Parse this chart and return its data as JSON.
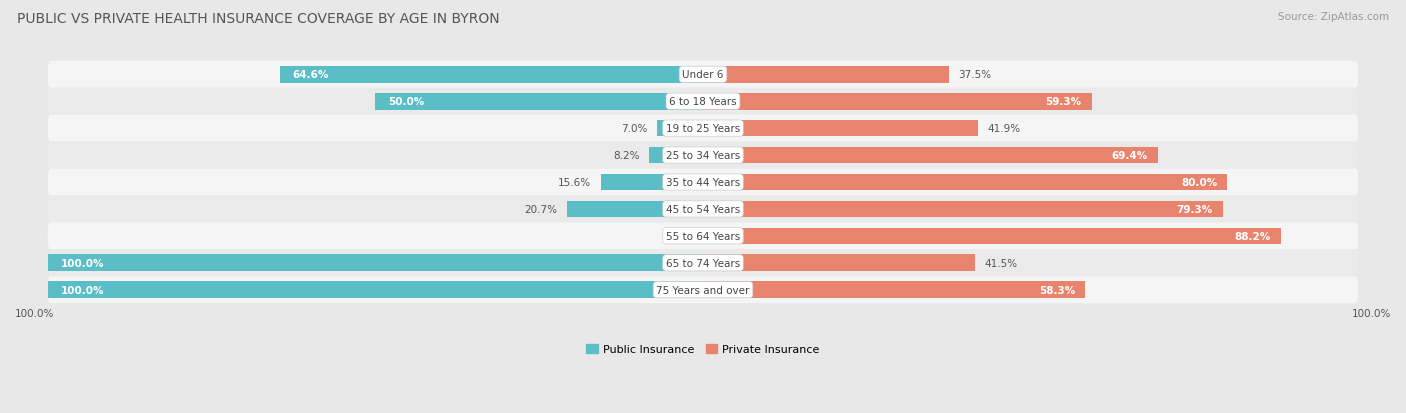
{
  "title": "PUBLIC VS PRIVATE HEALTH INSURANCE COVERAGE BY AGE IN BYRON",
  "source": "Source: ZipAtlas.com",
  "categories": [
    "Under 6",
    "6 to 18 Years",
    "19 to 25 Years",
    "25 to 34 Years",
    "35 to 44 Years",
    "45 to 54 Years",
    "55 to 64 Years",
    "65 to 74 Years",
    "75 Years and over"
  ],
  "public_values": [
    64.6,
    50.0,
    7.0,
    8.2,
    15.6,
    20.7,
    0.0,
    100.0,
    100.0
  ],
  "private_values": [
    37.5,
    59.3,
    41.9,
    69.4,
    80.0,
    79.3,
    88.2,
    41.5,
    58.3
  ],
  "public_color": "#5bbec7",
  "private_color": "#e8836e",
  "public_label": "Public Insurance",
  "private_label": "Private Insurance",
  "background_color": "#e8e8e8",
  "row_bg_even": "#f5f5f5",
  "row_bg_odd": "#eaeaea",
  "title_fontsize": 10,
  "source_fontsize": 7.5,
  "bar_label_fontsize": 7.5,
  "cat_label_fontsize": 7.5,
  "legend_fontsize": 8,
  "bar_height": 0.62,
  "max_value": 100.0,
  "xlim": 100.0,
  "bottom_label": "100.0%"
}
